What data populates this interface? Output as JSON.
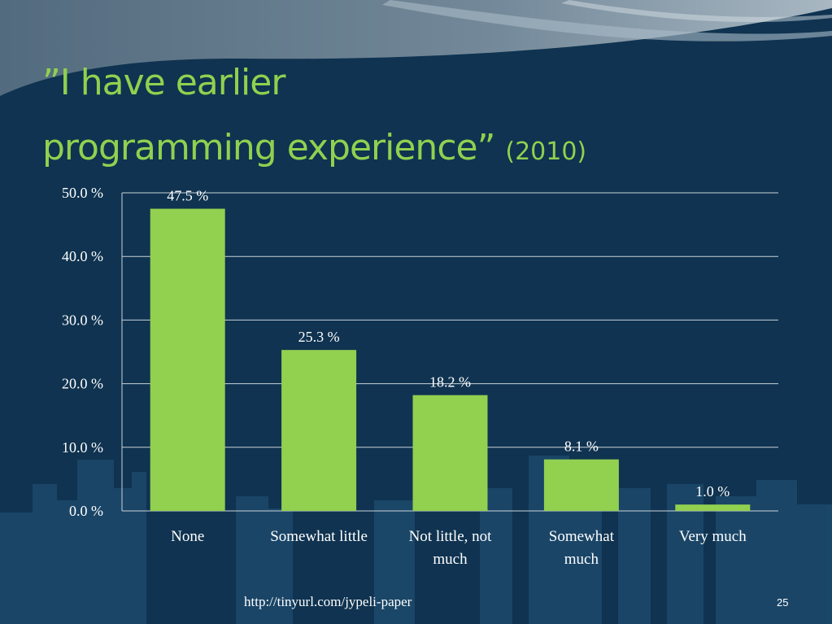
{
  "slide": {
    "title_line1": "”I have earlier",
    "title_line2": "programming experience”",
    "title_year": "(2010)",
    "footer_link": "http://tinyurl.com/jypeli-paper",
    "slide_number": "25"
  },
  "colors": {
    "background": "#0f3350",
    "title": "#8fd14f",
    "bar": "#92d050",
    "text": "#ffffff"
  },
  "chart_data": {
    "type": "bar",
    "categories": [
      [
        "None"
      ],
      [
        "Somewhat little"
      ],
      [
        "Not little, not",
        "much"
      ],
      [
        "Somewhat",
        "much"
      ],
      [
        "Very much"
      ]
    ],
    "values": [
      47.5,
      25.3,
      18.2,
      8.1,
      1.0
    ],
    "data_labels": [
      "47.5 %",
      "25.3 %",
      "18.2 %",
      "8.1 %",
      "1.0 %"
    ],
    "yticks": [
      0,
      10,
      20,
      30,
      40,
      50
    ],
    "ytick_labels": [
      "0.0 %",
      "10.0 %",
      "20.0 %",
      "30.0 %",
      "40.0 %",
      "50.0 %"
    ],
    "ylim": [
      0,
      50
    ],
    "grid": true,
    "legend": "none"
  }
}
